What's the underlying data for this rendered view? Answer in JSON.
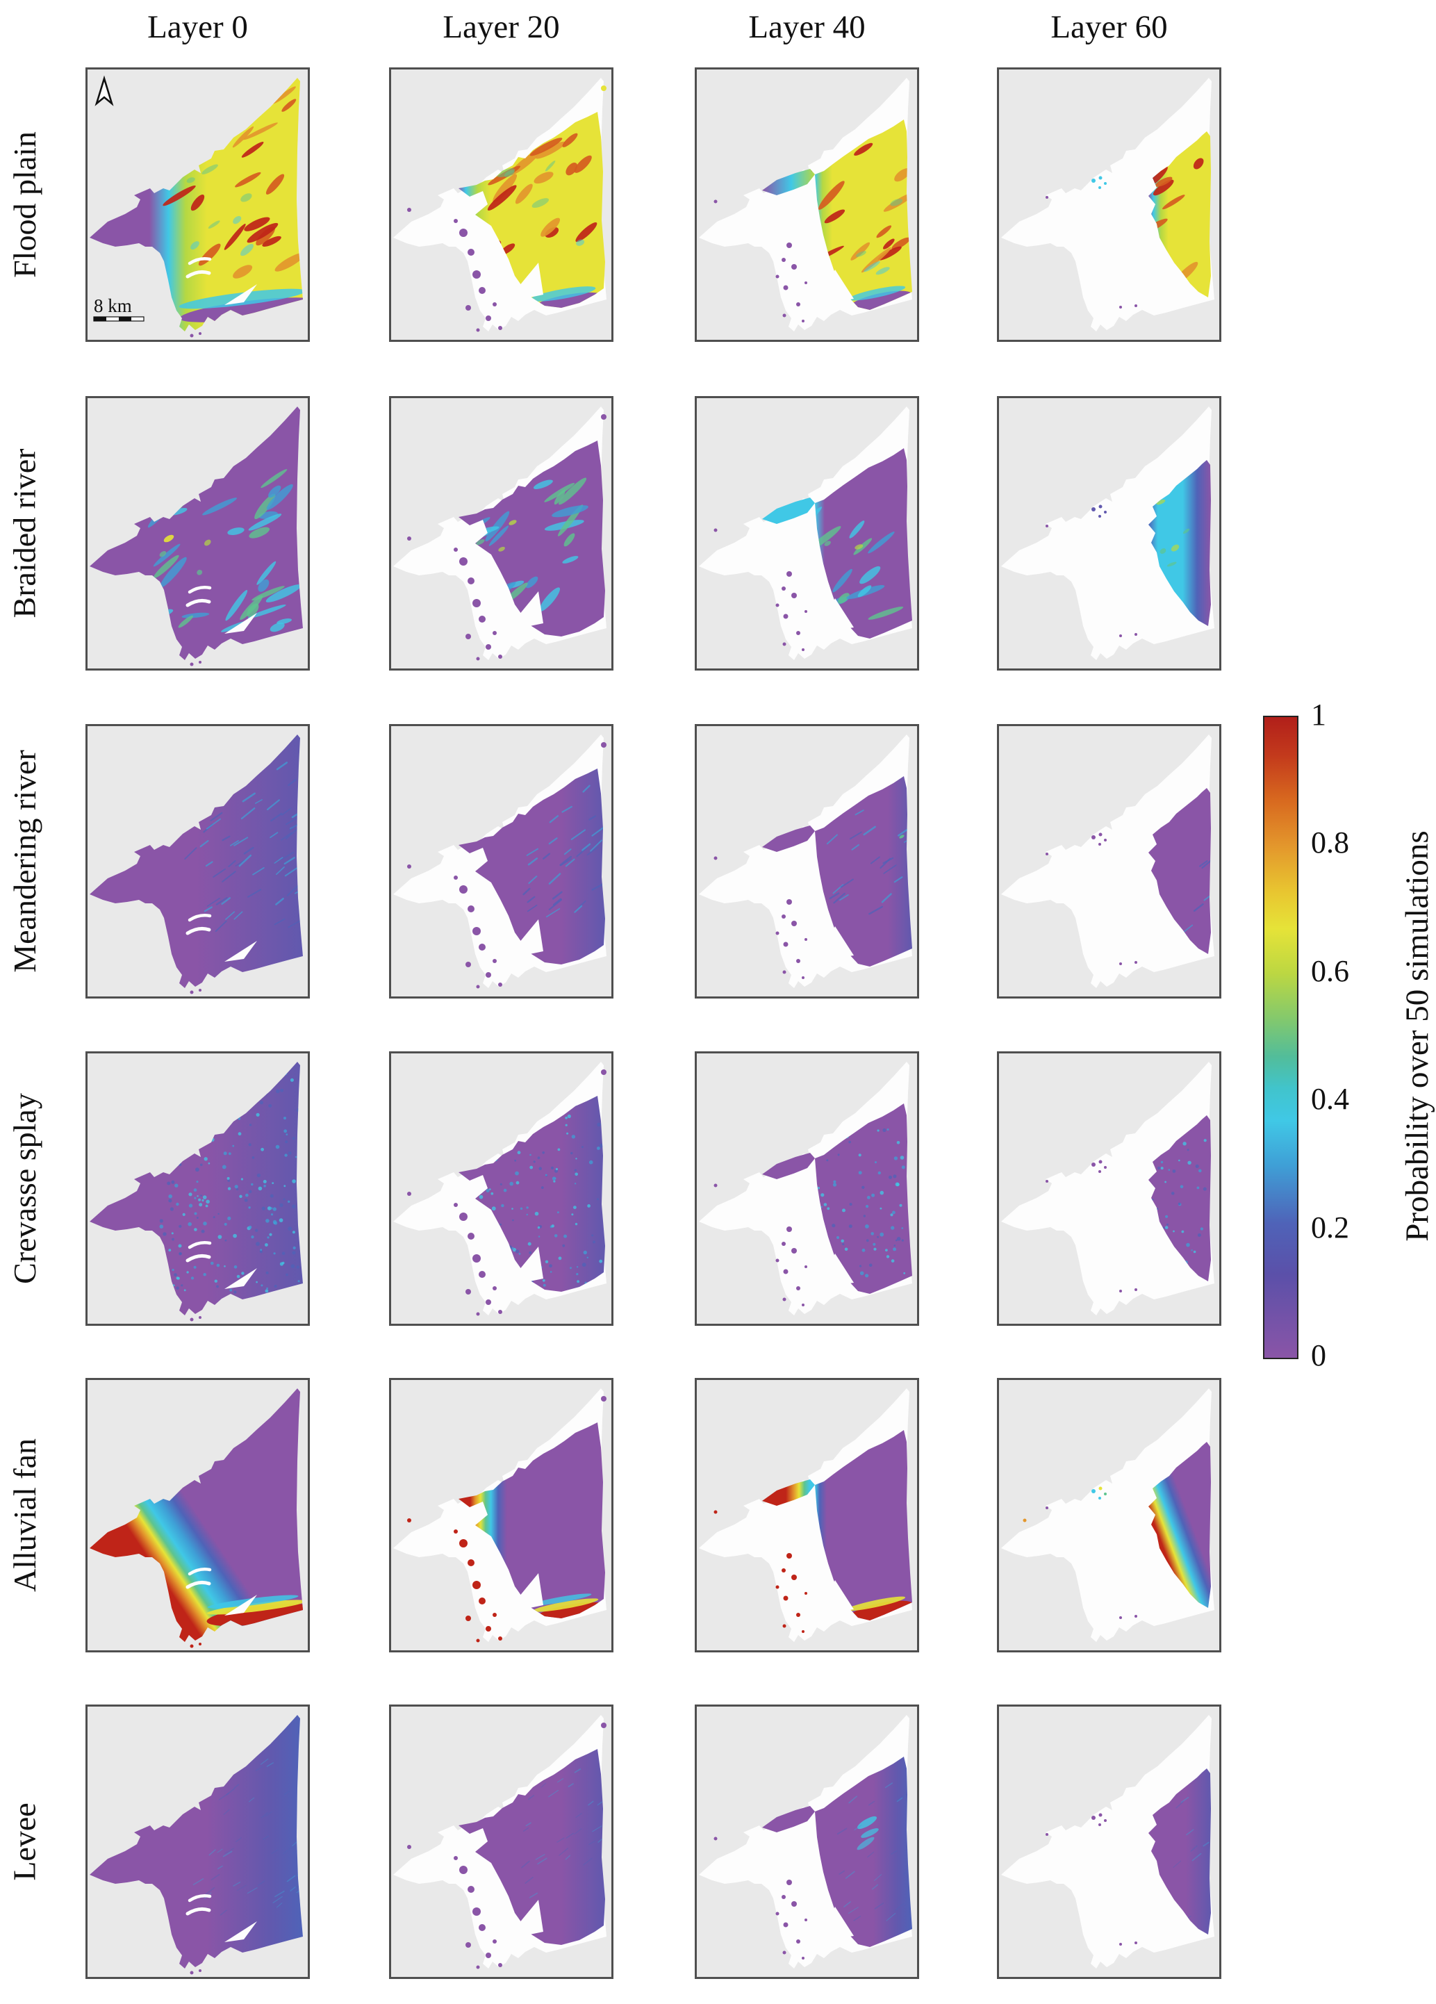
{
  "figure": {
    "column_headers": [
      "Layer 0",
      "Layer 20",
      "Layer 40",
      "Layer 60"
    ],
    "row_labels": [
      "Flood plain",
      "Braided river",
      "Meandering river",
      "Crevasse splay",
      "Alluvial fan",
      "Levee"
    ],
    "colorbar": {
      "label": "Probability over 50 simulations",
      "tick_labels": [
        "1",
        "0.8",
        "0.6",
        "0.4",
        "0.2",
        "0"
      ]
    },
    "scale_bar_label": "8 km",
    "north_arrow_icon": "north-arrow-icon"
  },
  "palette": {
    "page_bg": "#ffffff",
    "panel_bg": "#e9e9e9",
    "panel_border": "#4f4f4f",
    "footprint_white": "#fdfdfd",
    "text": "#111111",
    "prob_0": "#8a55a7",
    "prob_0_15": "#6159ae",
    "prob_0_2": "#4f63b8",
    "prob_0_3": "#3f9fd6",
    "prob_0_4": "#40c8e6",
    "prob_0_5": "#5ec48e",
    "prob_0_6": "#b5d843",
    "prob_0_65": "#e6e338",
    "prob_0_7": "#e3b92e",
    "prob_0_8": "#e3962c",
    "prob_0_9": "#d55c1f",
    "prob_1": "#bf2418",
    "colorbar_stops": [
      [
        0,
        "#8a55a7"
      ],
      [
        0.13,
        "#5b50a9"
      ],
      [
        0.21,
        "#4f63b8"
      ],
      [
        0.3,
        "#3f9fd6"
      ],
      [
        0.37,
        "#40c8e6"
      ],
      [
        0.42,
        "#41c4cc"
      ],
      [
        0.47,
        "#52bd9a"
      ],
      [
        0.53,
        "#84c96c"
      ],
      [
        0.6,
        "#bcd742"
      ],
      [
        0.67,
        "#e6e338"
      ],
      [
        0.73,
        "#e8c430"
      ],
      [
        0.8,
        "#e3962c"
      ],
      [
        0.87,
        "#d8691f"
      ],
      [
        0.94,
        "#c33a1c"
      ],
      [
        1,
        "#b11f1a"
      ]
    ]
  },
  "row_render": [
    {
      "kind": "flood",
      "frag": "P",
      "tip": "Y",
      "cluster": "C"
    },
    {
      "kind": "braided",
      "frag": "P",
      "tip": "P",
      "cluster": "I"
    },
    {
      "kind": "meander",
      "frag": "P",
      "tip": "P",
      "cluster": "P"
    },
    {
      "kind": "crevasse",
      "frag": "P",
      "tip": "P",
      "cluster": "P"
    },
    {
      "kind": "alluvial",
      "frag": "R",
      "tip": "P",
      "cluster": "mix"
    },
    {
      "kind": "levee",
      "frag": "P",
      "tip": "P",
      "cluster": "P"
    }
  ],
  "chart_data": {
    "type": "heatmap",
    "title": "Facies probability maps by stratigraphic layer",
    "rows": [
      "Flood plain",
      "Braided river",
      "Meandering river",
      "Crevasse splay",
      "Alluvial fan",
      "Levee"
    ],
    "columns": [
      "Layer 0",
      "Layer 20",
      "Layer 40",
      "Layer 60"
    ],
    "value_label": "Probability over 50 simulations",
    "value_range": [
      0,
      1
    ],
    "colorbar_ticks": [
      0,
      0.2,
      0.4,
      0.6,
      0.8,
      1
    ],
    "colormap": "rainbow: purple 0, blue 0.2, cyan 0.35, green 0.5, yellow 0.65, orange 0.8, red 1",
    "map_annotations": {
      "scale_bar": "8 km",
      "north_arrow": true
    },
    "panel_summaries": [
      [
        "High 0.6-0.9 over whole delta plain with red ridges near 1 in NE; low purple lobe in west",
        "East body stays high with red ridges; west margin cyan-purple; scattered low remnants in SW",
        "Only eastern wedge high with red ridges; purple-cyan beak at mid-west; sparse dots SW",
        "Narrow eastern strip high 0.6-0.9 with red patches; purple-cyan fringe on its west edge"
      ],
      [
        "Low (<0.2) purple base with cyan 0.2-0.4 channel streaks fanning from delta apex; small yellow hotspot near apex",
        "Cyan channel streaks persist in centre and south of the shrunken body",
        "Cyan streaks in core of eastern wedge; cyan beak at mid-west",
        "Eastern strip mostly 0.2-0.4 cyan with purple fringes and green flecks"
      ],
      [
        "Low (<0.2) purple; fine blue ~0.2 streaks across the northeast half",
        "Mostly low; faint fine streaks in the east",
        "Low wedge; isolated ~0.4-0.5 green fleck at the east edge",
        "Uniform low purple strip"
      ],
      [
        "Low purple base densely speckled with ~0.2-0.3 blue dots over the east",
        "Speckled low probabilities across the east body",
        "Sparser speckles in the eastern wedge",
        "Sparse speckles in the strip"
      ],
      [
        "Probability ~1 (red) in west and south lobes with rainbow fringe down to purple east body",
        "Red band along the ragged west margin and along the south-east rim; red remnant patches SW; purple body east",
        "Red beak at mid-west and red south-east rim of the purple wedge; scattered red dots SW",
        "Red-to-yellow band along the lower-left edge of the purple strip; cyan near its top"
      ],
      [
        "Low (<0.2) purple with very fine faint blue streaks in the east half",
        "Mostly low with fainter streaks",
        "Low wedge with brighter cyan wisps near the east edge; many small purple remnants west",
        "Uniform low purple strip with slight blue tint"
      ]
    ]
  }
}
